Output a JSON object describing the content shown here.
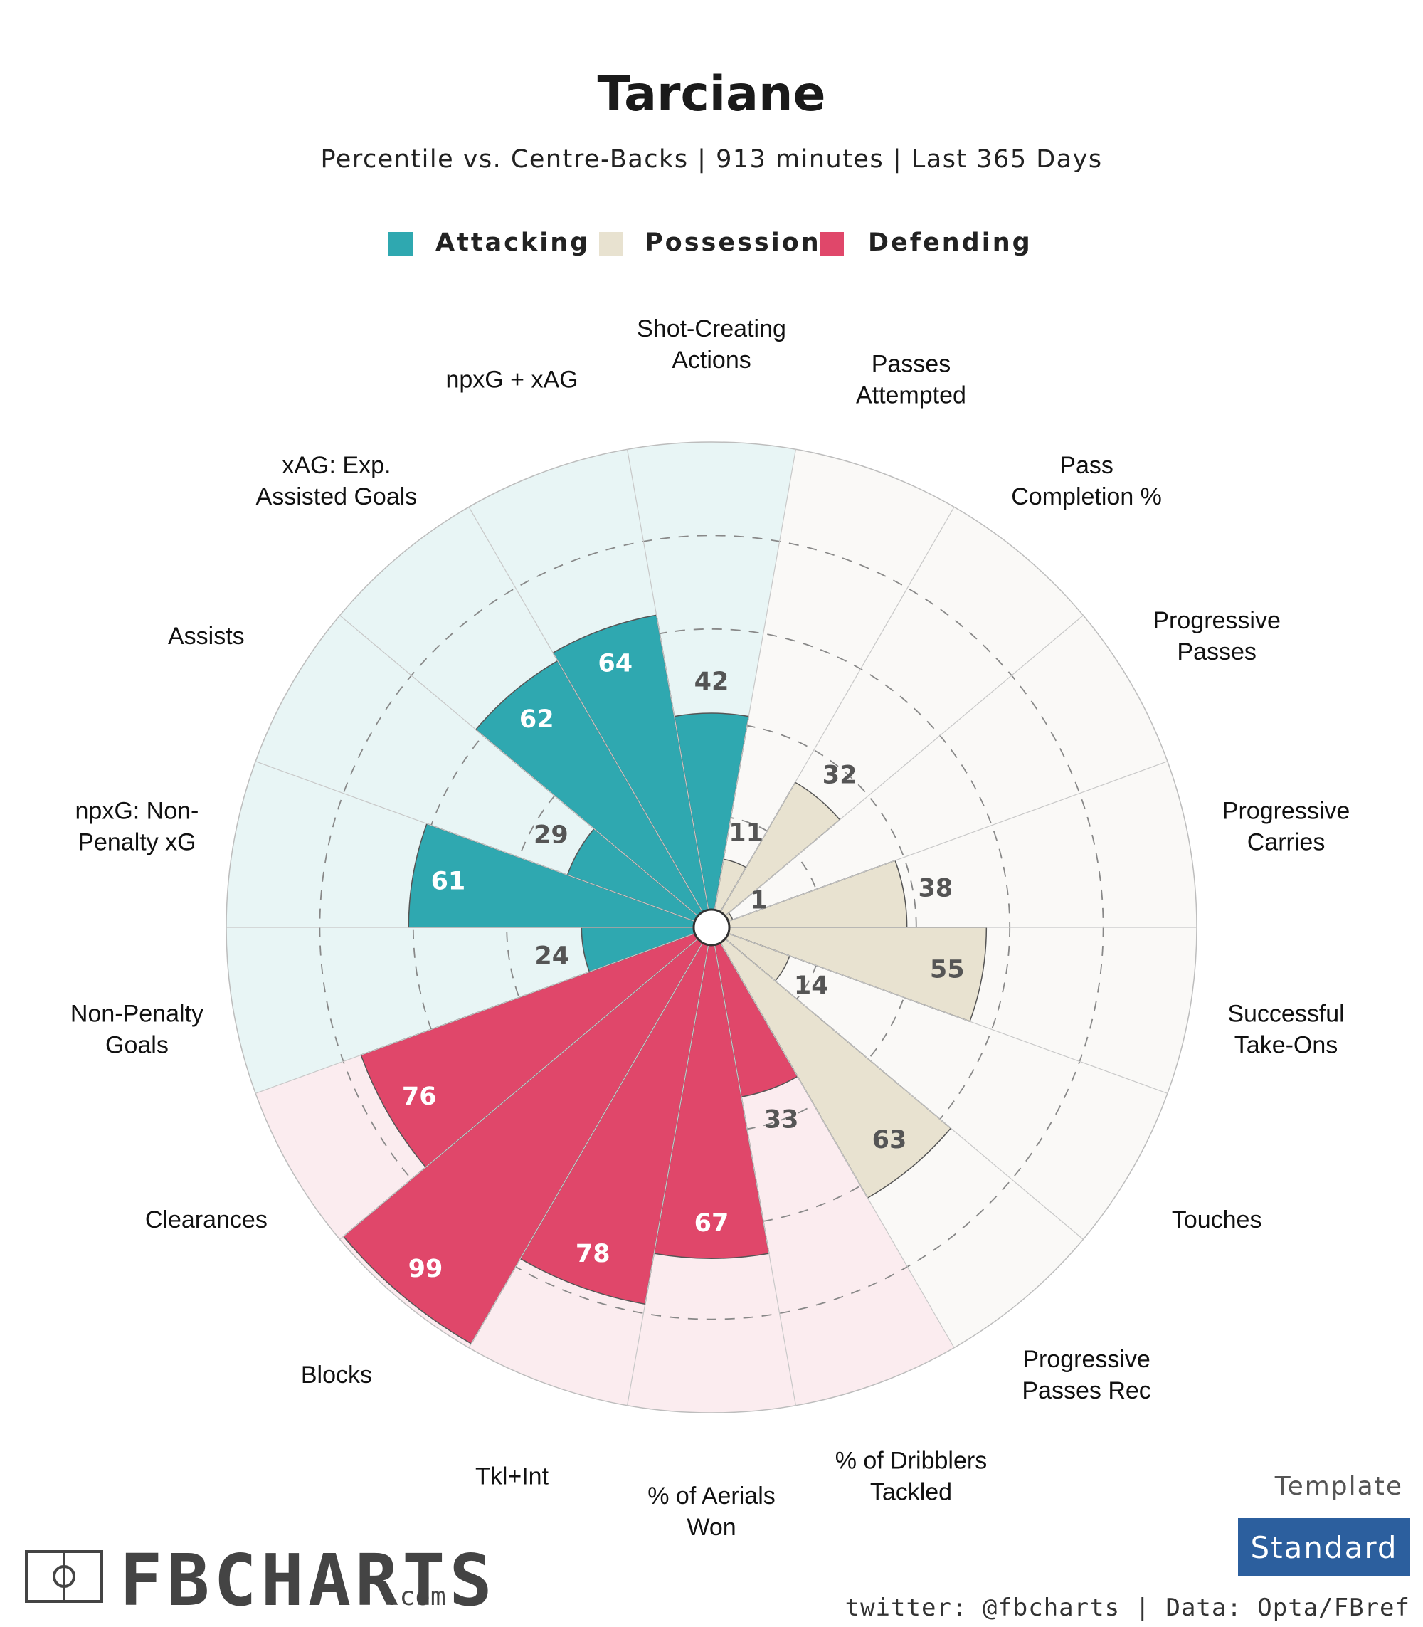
{
  "header": {
    "title": "Tarciane",
    "subtitle": "Percentile vs. Centre-Backs | 913 minutes | Last 365 Days"
  },
  "legend": [
    {
      "label": "Attacking",
      "color": "#2fa8b0"
    },
    {
      "label": "Possession",
      "color": "#e8e2d0"
    },
    {
      "label": "Defending",
      "color": "#e0476a"
    }
  ],
  "chart_data": {
    "type": "polar-bar",
    "title": "Tarciane",
    "rlim": [
      0,
      100
    ],
    "gridlines": [
      20,
      40,
      60,
      80
    ],
    "series": [
      {
        "name": "Attacking",
        "color": "#2fa8b0",
        "bg_color": "#e8f5f5",
        "label_color": "#ffffff",
        "label_color_low": "#555555"
      },
      {
        "name": "Possession",
        "color": "#e8e2d0",
        "bg_color": "#faf9f7",
        "label_color": "#555555",
        "label_color_low": "#555555"
      },
      {
        "name": "Defending",
        "color": "#e0476a",
        "bg_color": "#fbecef",
        "label_color": "#ffffff",
        "label_color_low": "#555555"
      }
    ],
    "metrics": [
      {
        "label": "Shot-Creating\nActions",
        "value": 42,
        "group": "Attacking"
      },
      {
        "label": "Passes\nAttempted",
        "value": 11,
        "group": "Possession"
      },
      {
        "label": "Pass\nCompletion %",
        "value": 32,
        "group": "Possession"
      },
      {
        "label": "Progressive\nPasses",
        "value": 1,
        "group": "Possession"
      },
      {
        "label": "Progressive\nCarries",
        "value": 38,
        "group": "Possession"
      },
      {
        "label": "Successful\nTake-Ons",
        "value": 55,
        "group": "Possession"
      },
      {
        "label": "Touches",
        "value": 14,
        "group": "Possession"
      },
      {
        "label": "Progressive\nPasses Rec",
        "value": 63,
        "group": "Possession"
      },
      {
        "label": "% of Dribblers\nTackled",
        "value": 33,
        "group": "Defending"
      },
      {
        "label": "% of Aerials\nWon",
        "value": 67,
        "group": "Defending"
      },
      {
        "label": "Tkl+Int",
        "value": 78,
        "group": "Defending"
      },
      {
        "label": "Blocks",
        "value": 99,
        "group": "Defending"
      },
      {
        "label": "Clearances",
        "value": 76,
        "group": "Defending"
      },
      {
        "label": "Non-Penalty\nGoals",
        "value": 24,
        "group": "Attacking"
      },
      {
        "label": "npxG: Non-\nPenalty xG",
        "value": 61,
        "group": "Attacking"
      },
      {
        "label": "Assists",
        "value": 29,
        "group": "Attacking"
      },
      {
        "label": "xAG: Exp.\nAssisted Goals",
        "value": 62,
        "group": "Attacking"
      },
      {
        "label": "npxG + xAG",
        "value": 64,
        "group": "Attacking"
      }
    ]
  },
  "footer": {
    "brand": "FBCHARTS",
    "brand_suffix": ".com",
    "template_label": "Template",
    "template_value": "Standard",
    "credits": "twitter: @fbcharts | Data: Opta/FBref"
  },
  "colors": {
    "standard_badge": "#2c5f9e",
    "bar_stroke": "#555555",
    "grid_stroke": "#888888"
  }
}
